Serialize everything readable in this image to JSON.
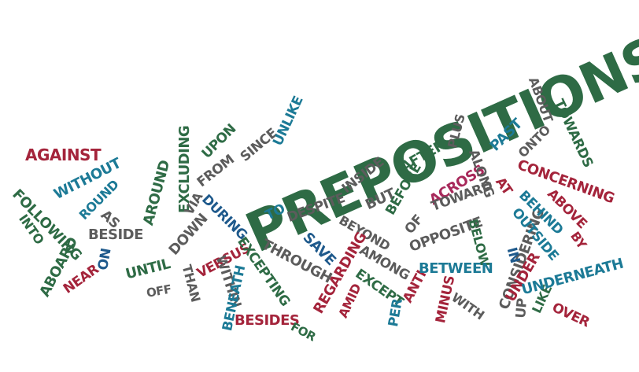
{
  "palette": {
    "green": "#2e6b45",
    "gray": "#5c5c5c",
    "red": "#a4243b",
    "blue": "#1f5a8c",
    "teal": "#1c7a96",
    "magenta": "#a8295b"
  },
  "words": [
    {
      "text": "PREPOSITIONS",
      "color": "green"
    },
    {
      "text": "AGAINST",
      "color": "red"
    },
    {
      "text": "WITHOUT",
      "color": "teal"
    },
    {
      "text": "FOLLOWING",
      "color": "green"
    },
    {
      "text": "ROUND",
      "color": "teal"
    },
    {
      "text": "INTO",
      "color": "green"
    },
    {
      "text": "AS",
      "color": "gray"
    },
    {
      "text": "BESIDE",
      "color": "gray"
    },
    {
      "text": "ABOARD",
      "color": "green"
    },
    {
      "text": "NEAR",
      "color": "red"
    },
    {
      "text": "ON",
      "color": "blue"
    },
    {
      "text": "UNTIL",
      "color": "green"
    },
    {
      "text": "AROUND",
      "color": "green"
    },
    {
      "text": "EXCLUDING",
      "color": "green"
    },
    {
      "text": "UPON",
      "color": "green"
    },
    {
      "text": "FROM",
      "color": "gray"
    },
    {
      "text": "SINCE",
      "color": "gray"
    },
    {
      "text": "UNLIKE",
      "color": "teal"
    },
    {
      "text": "VIA",
      "color": "gray"
    },
    {
      "text": "DOWN",
      "color": "gray"
    },
    {
      "text": "OFF",
      "color": "gray"
    },
    {
      "text": "THAN",
      "color": "gray"
    },
    {
      "text": "VERSUS",
      "color": "red"
    },
    {
      "text": "DURING",
      "color": "blue"
    },
    {
      "text": "EXCEPTING",
      "color": "green"
    },
    {
      "text": "WITHIN",
      "color": "gray"
    },
    {
      "text": "BENEATH",
      "color": "teal"
    },
    {
      "text": "BESIDES",
      "color": "red"
    },
    {
      "text": "FOR",
      "color": "green"
    },
    {
      "text": "TO",
      "color": "teal"
    },
    {
      "text": "DESPITE",
      "color": "gray"
    },
    {
      "text": "THROUGH",
      "color": "gray"
    },
    {
      "text": "INSIDE",
      "color": "gray"
    },
    {
      "text": "BUT",
      "color": "gray"
    },
    {
      "text": "BEYOND",
      "color": "gray"
    },
    {
      "text": "SAVE",
      "color": "blue"
    },
    {
      "text": "REGARDING",
      "color": "red"
    },
    {
      "text": "AMID",
      "color": "red"
    },
    {
      "text": "AMONG",
      "color": "gray"
    },
    {
      "text": "EXCEPT",
      "color": "green"
    },
    {
      "text": "PER",
      "color": "teal"
    },
    {
      "text": "AFTER",
      "color": "green"
    },
    {
      "text": "BEFORE",
      "color": "green"
    },
    {
      "text": "PLUS",
      "color": "gray"
    },
    {
      "text": "ACROSS",
      "color": "magenta"
    },
    {
      "text": "TOWARD",
      "color": "gray"
    },
    {
      "text": "OF",
      "color": "gray"
    },
    {
      "text": "OPPOSITE",
      "color": "gray"
    },
    {
      "text": "BELOW",
      "color": "green"
    },
    {
      "text": "ANTI",
      "color": "red"
    },
    {
      "text": "MINUS",
      "color": "red"
    },
    {
      "text": "BETWEEN",
      "color": "teal"
    },
    {
      "text": "WITH",
      "color": "gray"
    },
    {
      "text": "CONSIDERING",
      "color": "gray"
    },
    {
      "text": "ALONG",
      "color": "gray"
    },
    {
      "text": "PAST",
      "color": "teal"
    },
    {
      "text": "ABOUT",
      "color": "gray"
    },
    {
      "text": "ONTO",
      "color": "gray"
    },
    {
      "text": "TOWARDS",
      "color": "green"
    },
    {
      "text": "CONCERNING",
      "color": "red"
    },
    {
      "text": "AT",
      "color": "red"
    },
    {
      "text": "BEHIND",
      "color": "teal"
    },
    {
      "text": "ABOVE",
      "color": "red"
    },
    {
      "text": "OUTSIDE",
      "color": "teal"
    },
    {
      "text": "BY",
      "color": "red"
    },
    {
      "text": "IN",
      "color": "blue"
    },
    {
      "text": "UNDER",
      "color": "red"
    },
    {
      "text": "UP",
      "color": "gray"
    },
    {
      "text": "LIKE",
      "color": "green"
    },
    {
      "text": "UNDERNEATH",
      "color": "teal"
    },
    {
      "text": "OVER",
      "color": "red"
    }
  ]
}
